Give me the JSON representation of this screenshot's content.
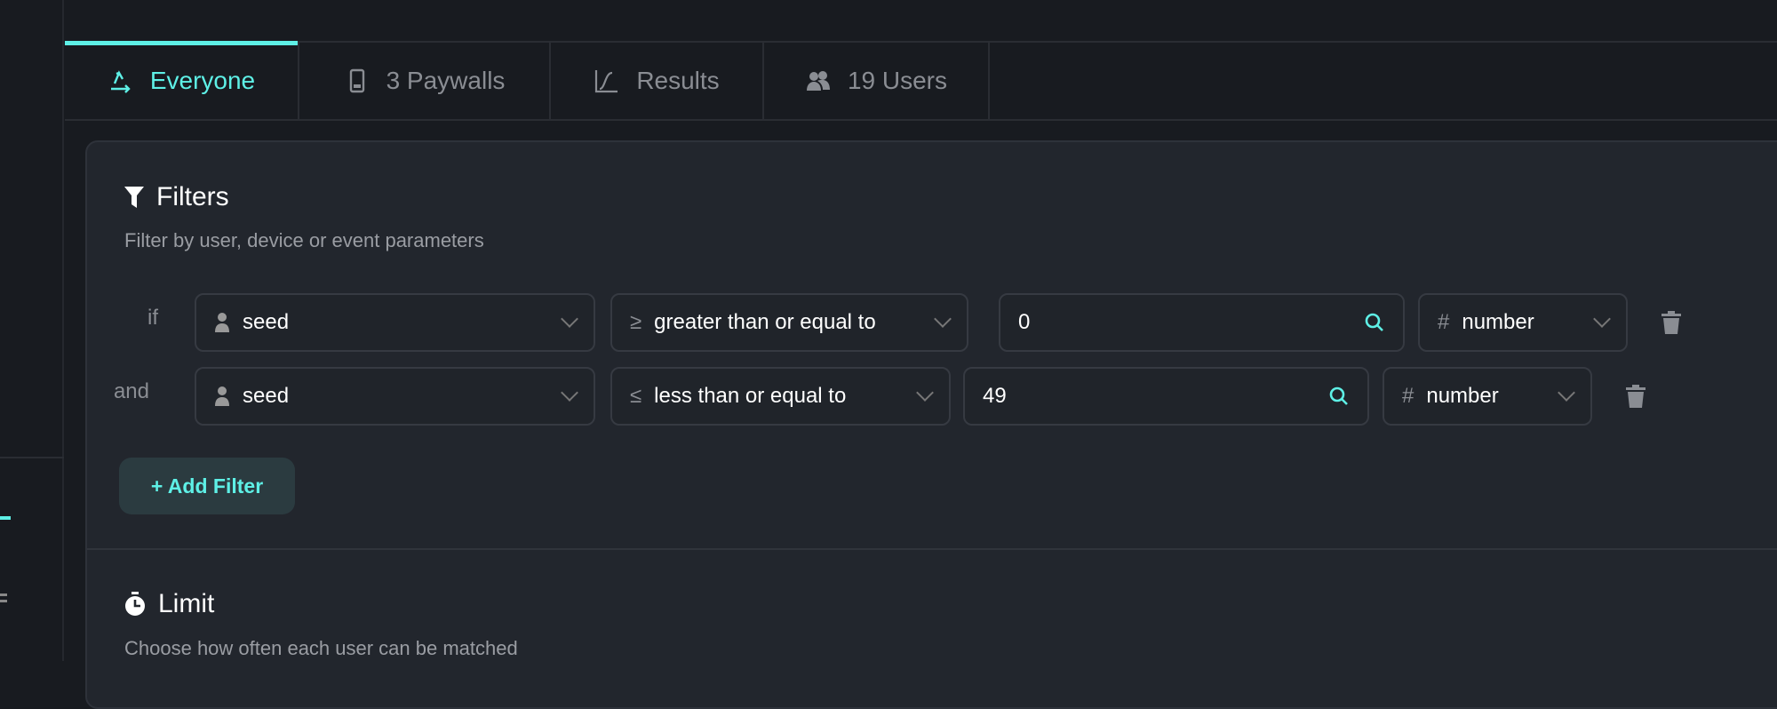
{
  "tabs": [
    {
      "label": "Everyone",
      "icon": "audience-arrows-icon",
      "active": true
    },
    {
      "label": "3 Paywalls",
      "icon": "phone-icon"
    },
    {
      "label": "Results",
      "icon": "chart-line-icon"
    },
    {
      "label": "19 Users",
      "icon": "users-icon"
    }
  ],
  "filters": {
    "title": "Filters",
    "subtitle": "Filter by user, device or event parameters",
    "rows": [
      {
        "conj": "if",
        "param": "seed",
        "op_symbol": "≥",
        "op": "greater than or equal to",
        "value": "0",
        "type_symbol": "#",
        "type": "number"
      },
      {
        "conj": "and",
        "param": "seed",
        "op_symbol": "≤",
        "op": "less than or equal to",
        "value": "49",
        "type_symbol": "#",
        "type": "number"
      }
    ],
    "add_label": "+ Add Filter"
  },
  "limit": {
    "title": "Limit",
    "subtitle": "Choose how often each user can be matched"
  },
  "colors": {
    "accent": "#5ef0e6",
    "background": "#181b20",
    "card": "#22262d"
  }
}
